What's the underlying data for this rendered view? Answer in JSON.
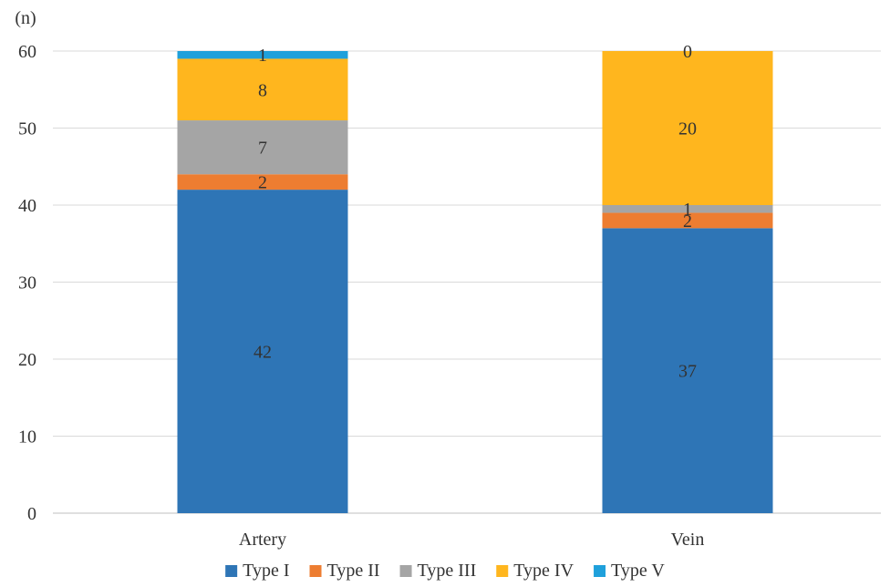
{
  "chart_data": {
    "type": "bar",
    "stacked": true,
    "title": "",
    "xlabel": "",
    "ylabel": "(n)",
    "ylim": [
      0,
      60
    ],
    "yticks": [
      0,
      10,
      20,
      30,
      40,
      50,
      60
    ],
    "grid": true,
    "legend_position": "bottom",
    "categories": [
      "Artery",
      "Vein"
    ],
    "series": [
      {
        "name": "Type I",
        "color": "#2E75B6",
        "values": [
          42,
          37
        ]
      },
      {
        "name": "Type II",
        "color": "#ED7D31",
        "values": [
          2,
          2
        ]
      },
      {
        "name": "Type III",
        "color": "#A5A5A5",
        "values": [
          7,
          1
        ]
      },
      {
        "name": "Type IV",
        "color": "#FFB61E",
        "values": [
          8,
          20
        ]
      },
      {
        "name": "Type V",
        "color": "#1FA0DB",
        "values": [
          1,
          0
        ]
      }
    ]
  }
}
